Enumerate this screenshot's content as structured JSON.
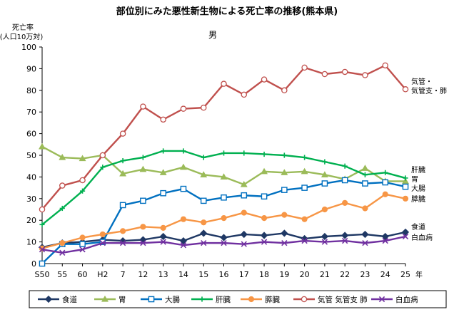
{
  "chart_data": {
    "type": "line",
    "title": "部位別にみた悪性新生物による死亡率の推移(熊本県)",
    "subtitle": "男",
    "ylabel_line1": "死亡率",
    "ylabel_line2": "(人口10万対)",
    "xlabel": "年",
    "ylim": [
      0,
      100
    ],
    "yticks": [
      0,
      10,
      20,
      30,
      40,
      50,
      60,
      70,
      80,
      90,
      100
    ],
    "grid": false,
    "legend_position": "bottom",
    "categories": [
      "S50",
      "55",
      "60",
      "H2",
      "7",
      "12",
      "13",
      "14",
      "15",
      "16",
      "17",
      "18",
      "19",
      "20",
      "21",
      "22",
      "23",
      "24",
      "25"
    ],
    "series": [
      {
        "name": "食道",
        "color": "#1F3864",
        "marker": "diamond",
        "end_label": [
          "食道"
        ],
        "values": [
          7.5,
          9.5,
          10.0,
          11.0,
          10.5,
          11.0,
          12.5,
          10.5,
          14.0,
          12.0,
          13.5,
          13.0,
          14.0,
          11.5,
          12.5,
          13.0,
          13.5,
          12.5,
          14.5
        ]
      },
      {
        "name": "胃",
        "color": "#9BBB59",
        "marker": "triangle",
        "end_label": [
          "胃"
        ],
        "values": [
          54.0,
          49.0,
          48.5,
          50.0,
          41.5,
          43.5,
          42.0,
          44.5,
          41.0,
          40.0,
          36.5,
          42.5,
          42.0,
          42.5,
          41.0,
          39.0,
          44.0,
          38.0,
          38.0
        ]
      },
      {
        "name": "大腸",
        "color": "#0070C0",
        "marker": "square",
        "end_label": [
          "大腸"
        ],
        "values": [
          0.0,
          9.0,
          9.0,
          10.0,
          27.0,
          29.0,
          32.5,
          34.5,
          29.0,
          30.5,
          31.5,
          31.0,
          34.0,
          35.0,
          37.0,
          38.5,
          37.0,
          37.5,
          35.5
        ]
      },
      {
        "name": "肝臓",
        "color": "#00B050",
        "marker": "plus",
        "end_label": [
          "肝臓"
        ],
        "values": [
          18.0,
          25.5,
          33.5,
          44.5,
          47.5,
          49.0,
          52.0,
          52.0,
          49.0,
          51.0,
          51.0,
          50.5,
          50.0,
          49.0,
          47.0,
          45.0,
          41.0,
          42.0,
          39.5
        ]
      },
      {
        "name": "膵臓",
        "color": "#F79646",
        "marker": "circle",
        "end_label": [
          "膵臓"
        ],
        "values": [
          7.0,
          9.5,
          12.0,
          13.5,
          15.0,
          17.0,
          16.5,
          20.5,
          19.0,
          21.0,
          23.5,
          21.0,
          22.5,
          20.5,
          25.0,
          28.0,
          25.5,
          32.0,
          30.0
        ]
      },
      {
        "name": "気管 気管支 肺",
        "color": "#C0504D",
        "marker": "circle-open",
        "end_label": [
          "気管・",
          "気管支・肺"
        ],
        "values": [
          25.0,
          36.0,
          38.5,
          50.0,
          60.0,
          72.5,
          66.5,
          71.5,
          72.0,
          83.0,
          78.0,
          85.0,
          80.0,
          90.5,
          87.5,
          88.5,
          87.0,
          91.5,
          80.5
        ]
      },
      {
        "name": "白血病",
        "color": "#7030A0",
        "marker": "x",
        "end_label": [
          "白血病"
        ],
        "values": [
          6.5,
          5.0,
          6.5,
          9.5,
          9.5,
          9.5,
          10.0,
          8.5,
          9.5,
          9.5,
          9.0,
          10.0,
          9.5,
          10.5,
          10.0,
          10.5,
          9.5,
          10.5,
          12.5
        ]
      }
    ]
  }
}
